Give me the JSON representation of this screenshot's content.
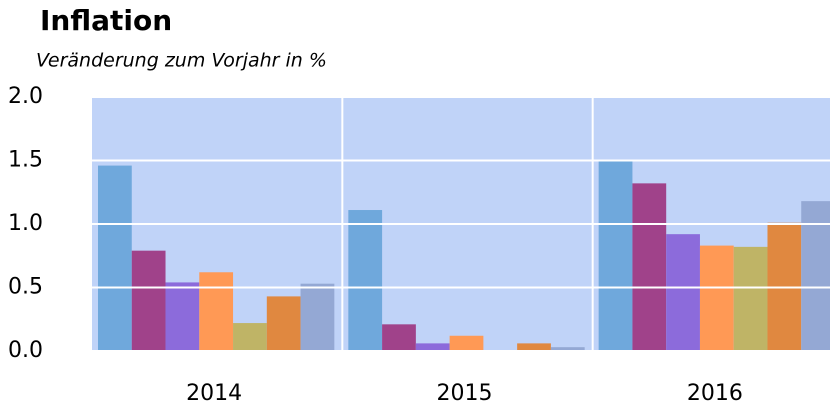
{
  "chart_data": {
    "type": "bar",
    "title": "Inflation",
    "subtitle": "Veränderung zum Vorjahr in %",
    "categories": [
      "2014",
      "2015",
      "2016"
    ],
    "series": [
      {
        "color": "#6fa8dc",
        "values": [
          1.46,
          1.11,
          1.5
        ]
      },
      {
        "color": "#a0428a",
        "values": [
          0.79,
          0.21,
          1.32
        ]
      },
      {
        "color": "#8c6bdb",
        "values": [
          0.54,
          0.06,
          0.92
        ]
      },
      {
        "color": "#ff9955",
        "values": [
          0.62,
          0.12,
          0.83
        ]
      },
      {
        "color": "#bfb466",
        "values": [
          0.22,
          0.0,
          0.82
        ]
      },
      {
        "color": "#e08840",
        "values": [
          0.43,
          0.06,
          1.01
        ]
      },
      {
        "color": "#94a8d4",
        "values": [
          0.53,
          0.03,
          1.18
        ]
      }
    ],
    "ylim": [
      0,
      2
    ],
    "yticks": [
      {
        "value": 0,
        "label": "0.0"
      },
      {
        "value": 0.5,
        "label": "0.5"
      },
      {
        "value": 1,
        "label": "1.0"
      },
      {
        "value": 1.5,
        "label": "1.5"
      },
      {
        "value": 2,
        "label": "2.0"
      }
    ],
    "grid": true
  }
}
